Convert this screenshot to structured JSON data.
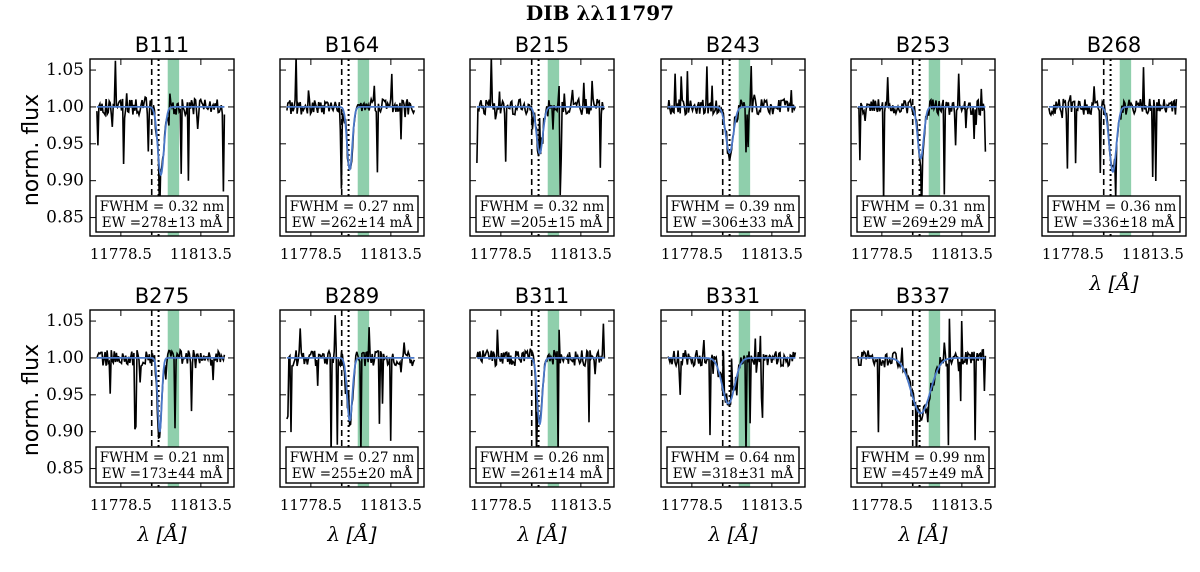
{
  "figure_title": "DIB λλ11797",
  "x_label": "λ [Å]",
  "y_label": "norm. flux",
  "chart_data": {
    "type": "line",
    "title": "DIB λλ11797",
    "xlabel": "λ [Å]",
    "ylabel": "norm. flux",
    "xlim": [
      11765,
      11828
    ],
    "ylim": [
      0.825,
      1.065
    ],
    "xticks": [
      11778.5,
      11813.5
    ],
    "xtick_labels": [
      "11778.5",
      "11813.5"
    ],
    "yticks": [
      0.85,
      0.9,
      0.95,
      1.0,
      1.05
    ],
    "ytick_labels": [
      "0.85",
      "0.90",
      "0.95",
      "1.00",
      "1.05"
    ],
    "grid": false,
    "colors": {
      "spectrum": "#000000",
      "fit": "#4a78c8",
      "band": "#8fcfac"
    },
    "reference_lines": {
      "dashed": 11792,
      "dotted": 11795
    },
    "band_range": [
      11799,
      11804
    ],
    "panels": [
      {
        "name": "B111",
        "center": 11796.0,
        "depth": 0.092,
        "fwhm_label": "FWHM = 0.32 nm",
        "ew_label": "EW =278±13 mÅ",
        "fwhm_nm": 0.32,
        "ew_mA": 278,
        "ew_err_mA": 13
      },
      {
        "name": "B164",
        "center": 11795.5,
        "depth": 0.085,
        "fwhm_label": "FWHM = 0.27 nm",
        "ew_label": "EW =262±14 mÅ",
        "fwhm_nm": 0.27,
        "ew_mA": 262,
        "ew_err_mA": 14
      },
      {
        "name": "B215",
        "center": 11795.5,
        "depth": 0.063,
        "fwhm_label": "FWHM = 0.32 nm",
        "ew_label": "EW =205±15 mÅ",
        "fwhm_nm": 0.32,
        "ew_mA": 205,
        "ew_err_mA": 15
      },
      {
        "name": "B243",
        "center": 11795.0,
        "depth": 0.062,
        "fwhm_label": "FWHM = 0.39 nm",
        "ew_label": "EW =306±33 mÅ",
        "fwhm_nm": 0.39,
        "ew_mA": 306,
        "ew_err_mA": 33
      },
      {
        "name": "B253",
        "center": 11795.5,
        "depth": 0.07,
        "fwhm_label": "FWHM = 0.31 nm",
        "ew_label": "EW =269±29 mÅ",
        "fwhm_nm": 0.31,
        "ew_mA": 269,
        "ew_err_mA": 29
      },
      {
        "name": "B268",
        "center": 11796.0,
        "depth": 0.088,
        "fwhm_label": "FWHM = 0.36 nm",
        "ew_label": "EW =336±18 mÅ",
        "fwhm_nm": 0.36,
        "ew_mA": 336,
        "ew_err_mA": 18
      },
      {
        "name": "B275",
        "center": 11795.5,
        "depth": 0.1,
        "fwhm_label": "FWHM = 0.21 nm",
        "ew_label": "EW =173±44 mÅ",
        "fwhm_nm": 0.21,
        "ew_mA": 173,
        "ew_err_mA": 44
      },
      {
        "name": "B289",
        "center": 11795.5,
        "depth": 0.085,
        "fwhm_label": "FWHM = 0.27 nm",
        "ew_label": "EW =255±20 mÅ",
        "fwhm_nm": 0.27,
        "ew_mA": 255,
        "ew_err_mA": 20
      },
      {
        "name": "B311",
        "center": 11795.5,
        "depth": 0.09,
        "fwhm_label": "FWHM = 0.26 nm",
        "ew_label": "EW =261±14 mÅ",
        "fwhm_nm": 0.26,
        "ew_mA": 261,
        "ew_err_mA": 14
      },
      {
        "name": "B331",
        "center": 11794.5,
        "depth": 0.062,
        "fwhm_label": "FWHM = 0.64 nm",
        "ew_label": "EW =318±31 mÅ",
        "fwhm_nm": 0.64,
        "ew_mA": 318,
        "ew_err_mA": 31
      },
      {
        "name": "B337",
        "center": 11795.5,
        "depth": 0.075,
        "fwhm_label": "FWHM = 0.99 nm",
        "ew_label": "EW =457±49 mÅ",
        "fwhm_nm": 0.99,
        "ew_mA": 457,
        "ew_err_mA": 49
      }
    ]
  }
}
